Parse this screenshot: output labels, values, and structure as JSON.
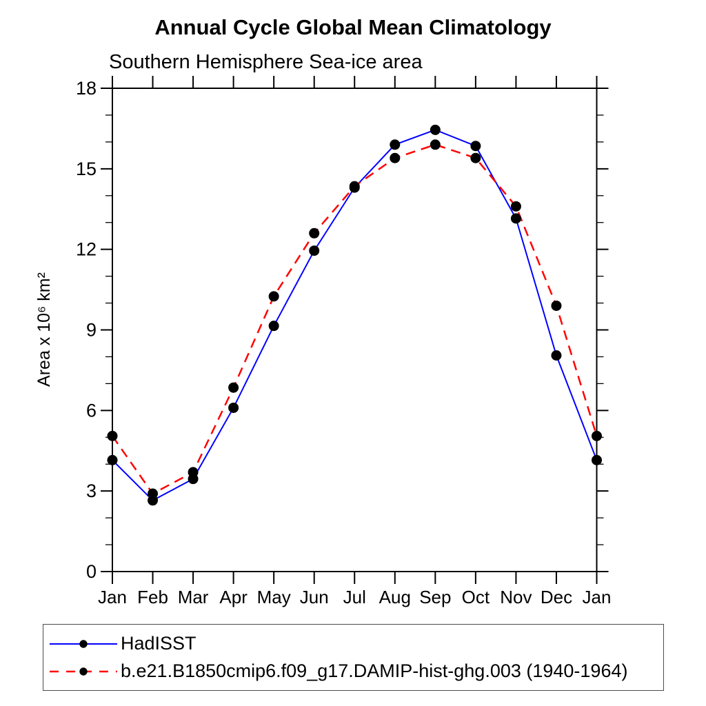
{
  "page": {
    "background": "#ffffff"
  },
  "chart_data": {
    "type": "line",
    "title": "Annual Cycle Global Mean Climatology",
    "subtitle": "Southern Hemisphere Sea-ice area",
    "xlabel": "",
    "ylabel": "Area x 10⁶ km²",
    "x_categories": [
      "Jan",
      "Feb",
      "Mar",
      "Apr",
      "May",
      "Jun",
      "Jul",
      "Aug",
      "Sep",
      "Oct",
      "Nov",
      "Dec",
      "Jan"
    ],
    "ylim": [
      0,
      18
    ],
    "y_major_ticks": [
      0,
      3,
      6,
      9,
      12,
      15,
      18
    ],
    "y_minor_step": 1,
    "grid": false,
    "legend_position": "bottom-left-box",
    "frame_color": "#000000",
    "series": [
      {
        "name": "HadISST",
        "color": "#0000ff",
        "line_style": "solid",
        "line_width": 2,
        "marker": "filled-circle",
        "marker_color": "#000000",
        "values": [
          4.15,
          2.65,
          3.45,
          6.1,
          9.15,
          11.95,
          14.3,
          15.9,
          16.45,
          15.85,
          13.15,
          8.05,
          4.15
        ]
      },
      {
        "name": "b.e21.B1850cmip6.f09_g17.DAMIP-hist-ghg.003 (1940-1964)",
        "color": "#ff0000",
        "line_style": "dashed",
        "line_width": 2.5,
        "marker": "filled-circle",
        "marker_color": "#000000",
        "values": [
          5.05,
          2.9,
          3.7,
          6.85,
          10.25,
          12.6,
          14.35,
          15.4,
          15.9,
          15.4,
          13.6,
          9.9,
          5.05
        ]
      }
    ]
  }
}
